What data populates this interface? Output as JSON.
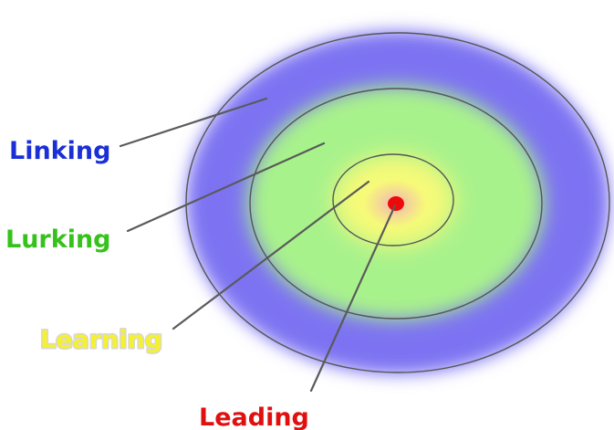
{
  "diagram": {
    "levels": [
      {
        "key": "linking",
        "label": "Linking",
        "color": "#1a2fd6",
        "outline": "#ffffff"
      },
      {
        "key": "lurking",
        "label": "Lurking",
        "color": "#35c21a",
        "outline": "#ffffff"
      },
      {
        "key": "learning",
        "label": "Learning",
        "color": "#f5f032",
        "outline": "#d8d8d8"
      },
      {
        "key": "leading",
        "label": "Leading",
        "color": "#e01010",
        "outline": "#ffffff"
      }
    ],
    "colors": {
      "outer_ring": "#7d73f2",
      "middle_ring": "#a8f28c",
      "inner_ring": "#f6fa78",
      "center_glow": "#f3b5b5",
      "center_dot": "#ee0a0a",
      "ring_outline": "#555555",
      "leader_line": "#5a5a5a"
    }
  }
}
